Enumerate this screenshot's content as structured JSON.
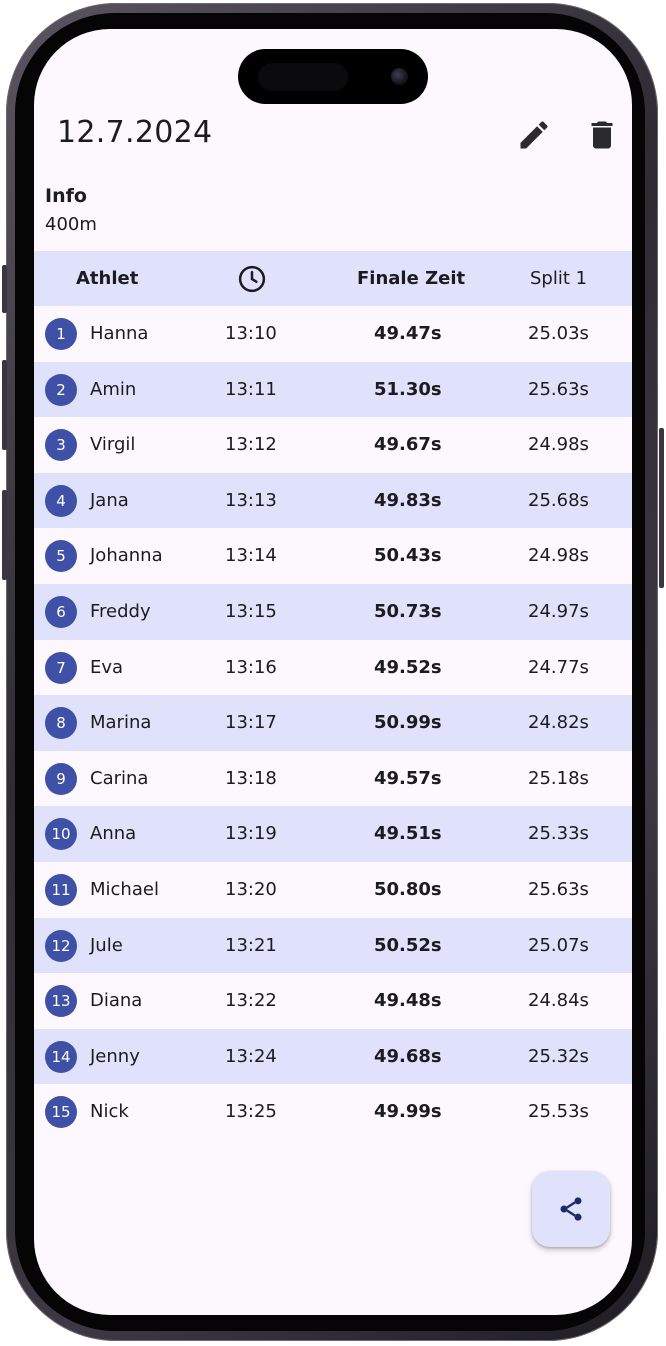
{
  "header": {
    "date_title": "12.7.2024",
    "edit_icon": "pencil-icon",
    "delete_icon": "trash-icon"
  },
  "info": {
    "label": "Info",
    "value": "400m"
  },
  "table": {
    "headers": {
      "athlet": "Athlet",
      "time_icon": "clock-icon",
      "final": "Finale Zeit",
      "split": "Split 1"
    },
    "rows": [
      {
        "num": "1",
        "name": "Hanna",
        "time": "13:10",
        "final": "49.47s",
        "split": "25.03s"
      },
      {
        "num": "2",
        "name": "Amin",
        "time": "13:11",
        "final": "51.30s",
        "split": "25.63s"
      },
      {
        "num": "3",
        "name": "Virgil",
        "time": "13:12",
        "final": "49.67s",
        "split": "24.98s"
      },
      {
        "num": "4",
        "name": "Jana",
        "time": "13:13",
        "final": "49.83s",
        "split": "25.68s"
      },
      {
        "num": "5",
        "name": "Johanna",
        "time": "13:14",
        "final": "50.43s",
        "split": "24.98s"
      },
      {
        "num": "6",
        "name": "Freddy",
        "time": "13:15",
        "final": "50.73s",
        "split": "24.97s"
      },
      {
        "num": "7",
        "name": "Eva",
        "time": "13:16",
        "final": "49.52s",
        "split": "24.77s"
      },
      {
        "num": "8",
        "name": "Marina",
        "time": "13:17",
        "final": "50.99s",
        "split": "24.82s"
      },
      {
        "num": "9",
        "name": "Carina",
        "time": "13:18",
        "final": "49.57s",
        "split": "25.18s"
      },
      {
        "num": "10",
        "name": "Anna",
        "time": "13:19",
        "final": "49.51s",
        "split": "25.33s"
      },
      {
        "num": "11",
        "name": "Michael",
        "time": "13:20",
        "final": "50.80s",
        "split": "25.63s"
      },
      {
        "num": "12",
        "name": "Jule",
        "time": "13:21",
        "final": "50.52s",
        "split": "25.07s"
      },
      {
        "num": "13",
        "name": "Diana",
        "time": "13:22",
        "final": "49.48s",
        "split": "24.84s"
      },
      {
        "num": "14",
        "name": "Jenny",
        "time": "13:24",
        "final": "49.68s",
        "split": "25.32s"
      },
      {
        "num": "15",
        "name": "Nick",
        "time": "13:25",
        "final": "49.99s",
        "split": "25.53s"
      }
    ]
  },
  "fab": {
    "icon": "share-icon"
  },
  "colors": {
    "badge": "#3f51a6",
    "row_highlight": "#dfe2fa",
    "background": "#fdf8fd",
    "text": "#1c1b1f"
  }
}
